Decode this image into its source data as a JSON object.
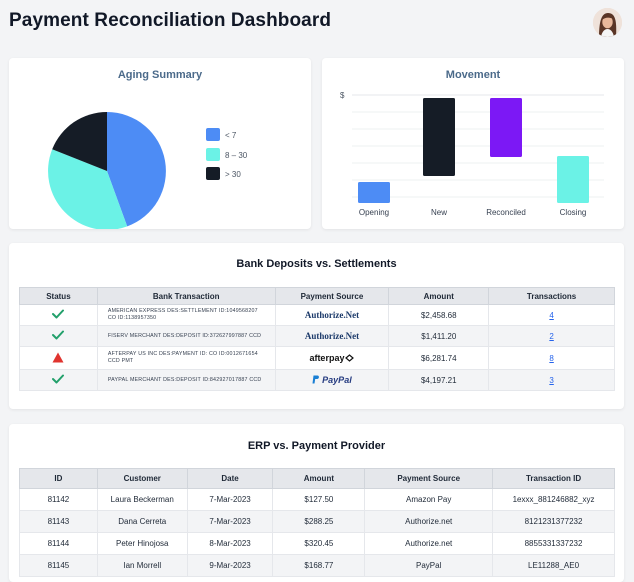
{
  "header": {
    "title": "Payment Reconciliation Dashboard"
  },
  "aging": {
    "title": "Aging Summary",
    "legend": [
      {
        "label": "< 7",
        "color": "#4d8cf5"
      },
      {
        "label": "8 – 30",
        "color": "#6bf2e6"
      },
      {
        "label": "> 30",
        "color": "#151c26"
      }
    ]
  },
  "chart_data": {
    "type": "bar",
    "title": "Movement",
    "ylabel": "$",
    "categories": [
      "Opening",
      "New",
      "Reconciled",
      "Closing"
    ],
    "colors": [
      "#4d8cf5",
      "#151c26",
      "#7c18f5",
      "#6bf2e6"
    ]
  },
  "bank": {
    "title": "Bank Deposits vs. Settlements",
    "headers": [
      "Status",
      "Bank Transaction",
      "Payment Source",
      "Amount",
      "Transactions"
    ],
    "rows": [
      {
        "status": "ok",
        "desc": "AMERICAN EXPRESS DES:SETTLEMENT ID:1049568207 CO ID:1138957350",
        "source": "Authorize.Net",
        "amount": "$2,458.68",
        "tx": "4"
      },
      {
        "status": "ok",
        "desc": "FISERV MERCHANT DES:DEPOSIT ID:372627997887 CCD",
        "source": "Authorize.Net",
        "amount": "$1,411.20",
        "tx": "2"
      },
      {
        "status": "warn",
        "desc": "AFTERPAY US INC DES:PAYMENT ID: CO ID:0012671654 CCD PMT",
        "source": "afterpay",
        "amount": "$6,281.74",
        "tx": "8"
      },
      {
        "status": "ok",
        "desc": "PAYPAL MERCHANT DES:DEPOSIT ID:842927017887 CCD",
        "source": "PayPal",
        "amount": "$4,197.21",
        "tx": "3"
      }
    ]
  },
  "erp": {
    "title": "ERP vs. Payment Provider",
    "headers": [
      "ID",
      "Customer",
      "Date",
      "Amount",
      "Payment Source",
      "Transaction ID"
    ],
    "rows": [
      [
        "81142",
        "Laura Beckerman",
        "7-Mar-2023",
        "$127.50",
        "Amazon Pay",
        "1exxx_881246882_xyz"
      ],
      [
        "81143",
        "Dana Cerreta",
        "7-Mar-2023",
        "$288.25",
        "Authorize.net",
        "8121231377232"
      ],
      [
        "81144",
        "Peter Hinojosa",
        "8-Mar-2023",
        "$320.45",
        "Authorize.net",
        "8855331337232"
      ],
      [
        "81145",
        "Ian Morrell",
        "9-Mar-2023",
        "$168.77",
        "PayPal",
        "LE11288_AE0"
      ]
    ]
  }
}
